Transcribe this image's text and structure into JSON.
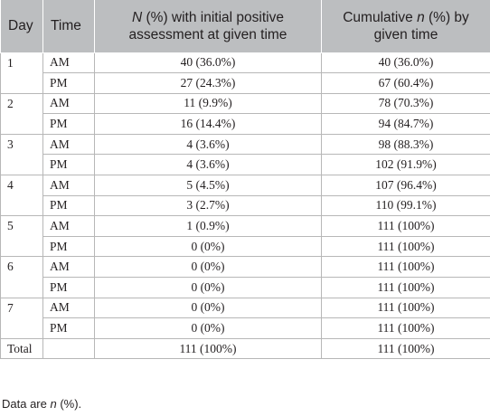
{
  "table": {
    "headers": {
      "day": "Day",
      "time": "Time",
      "initial_n": "N",
      "initial_rest": " (%) with initial positive assessment at given time",
      "cumulative_pre": "Cumulative ",
      "cumulative_n": "n",
      "cumulative_rest": " (%) by given time"
    },
    "rows": [
      {
        "day": "1",
        "time": "AM",
        "initial": "40 (36.0%)",
        "cumulative": "40 (36.0%)"
      },
      {
        "day": "",
        "time": "PM",
        "initial": "27 (24.3%)",
        "cumulative": "67 (60.4%)"
      },
      {
        "day": "2",
        "time": "AM",
        "initial": "11 (9.9%)",
        "cumulative": "78 (70.3%)"
      },
      {
        "day": "",
        "time": "PM",
        "initial": "16 (14.4%)",
        "cumulative": "94 (84.7%)"
      },
      {
        "day": "3",
        "time": "AM",
        "initial": "4 (3.6%)",
        "cumulative": "98 (88.3%)"
      },
      {
        "day": "",
        "time": "PM",
        "initial": "4 (3.6%)",
        "cumulative": "102 (91.9%)"
      },
      {
        "day": "4",
        "time": "AM",
        "initial": "5 (4.5%)",
        "cumulative": "107 (96.4%)"
      },
      {
        "day": "",
        "time": "PM",
        "initial": "3 (2.7%)",
        "cumulative": "110 (99.1%)"
      },
      {
        "day": "5",
        "time": "AM",
        "initial": "1 (0.9%)",
        "cumulative": "111 (100%)"
      },
      {
        "day": "",
        "time": "PM",
        "initial": "0 (0%)",
        "cumulative": "111 (100%)"
      },
      {
        "day": "6",
        "time": "AM",
        "initial": "0 (0%)",
        "cumulative": "111 (100%)"
      },
      {
        "day": "",
        "time": "PM",
        "initial": "0 (0%)",
        "cumulative": "111 (100%)"
      },
      {
        "day": "7",
        "time": "AM",
        "initial": "0 (0%)",
        "cumulative": "111 (100%)"
      },
      {
        "day": "",
        "time": "PM",
        "initial": "0 (0%)",
        "cumulative": "111 (100%)"
      }
    ],
    "total": {
      "label": "Total",
      "initial": "111 (100%)",
      "cumulative": "111 (100%)"
    }
  },
  "footnote": {
    "pre": "Data are ",
    "n": "n",
    "post": " (%)."
  }
}
